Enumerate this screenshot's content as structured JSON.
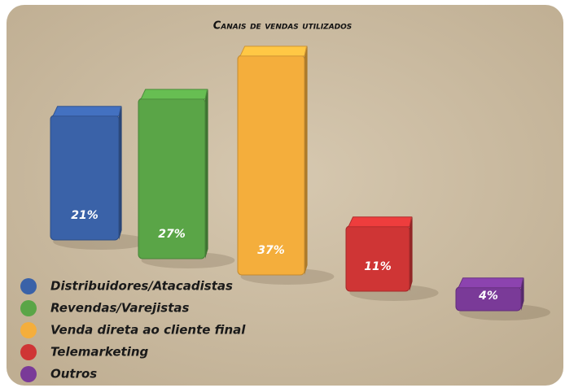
{
  "chart_data": {
    "type": "bar3d",
    "title": "Canais de vendas utilizados",
    "categories": [
      "Distribuidores/Atacadistas",
      "Revendas/Varejistas",
      "Venda direta ao cliente final",
      "Telemarketing",
      "Outros"
    ],
    "values": [
      21,
      27,
      37,
      11,
      4
    ],
    "value_labels": [
      "21%",
      "27%",
      "37%",
      "11%",
      "4%"
    ],
    "colors": [
      "#3a62a8",
      "#5aa547",
      "#f4ae3c",
      "#cf3535",
      "#7a3a98"
    ],
    "legend": "bottom-left"
  }
}
